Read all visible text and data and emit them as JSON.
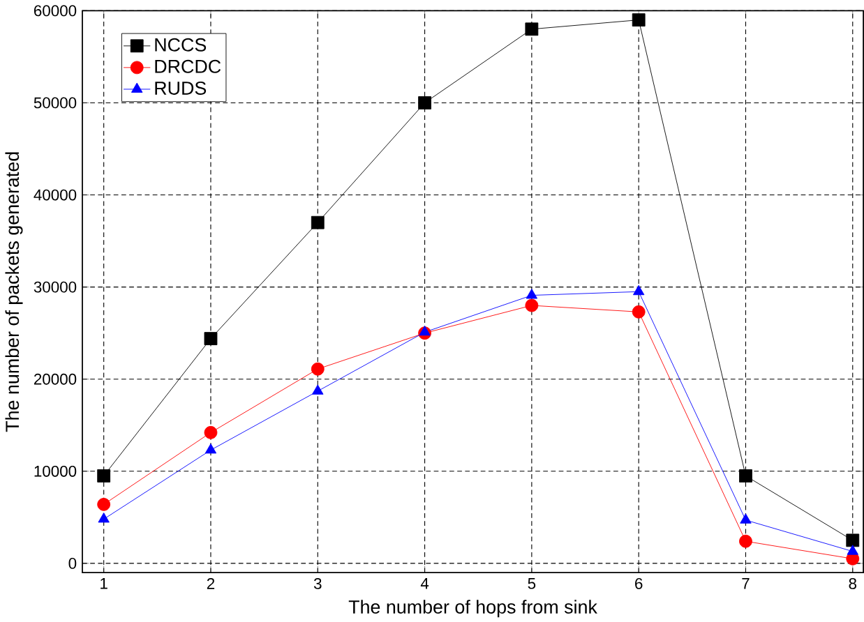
{
  "chart_data": {
    "type": "line",
    "xlabel": "The number of hops from sink",
    "ylabel": "The number of packets generated",
    "x": [
      1,
      2,
      3,
      4,
      5,
      6,
      7,
      8
    ],
    "series": [
      {
        "name": "NCCS",
        "color": "#000000",
        "marker": "square",
        "values": [
          9500,
          24400,
          37000,
          50000,
          58000,
          59000,
          9500,
          2500
        ]
      },
      {
        "name": "DRCDC",
        "color": "#ff0000",
        "marker": "circle",
        "values": [
          6400,
          14200,
          21100,
          25000,
          28000,
          27300,
          2400,
          500
        ]
      },
      {
        "name": "RUDS",
        "color": "#0000ff",
        "marker": "triangle",
        "values": [
          4800,
          12300,
          18700,
          25100,
          29100,
          29500,
          4700,
          1300
        ]
      }
    ],
    "xlim": [
      0.8,
      8.1
    ],
    "ylim": [
      -1000,
      60000
    ],
    "xticks": [
      1,
      2,
      3,
      4,
      5,
      6,
      7,
      8
    ],
    "yticks": [
      0,
      10000,
      20000,
      30000,
      40000,
      50000,
      60000
    ],
    "grid": true,
    "legend": "top left",
    "line_style": "solid"
  }
}
